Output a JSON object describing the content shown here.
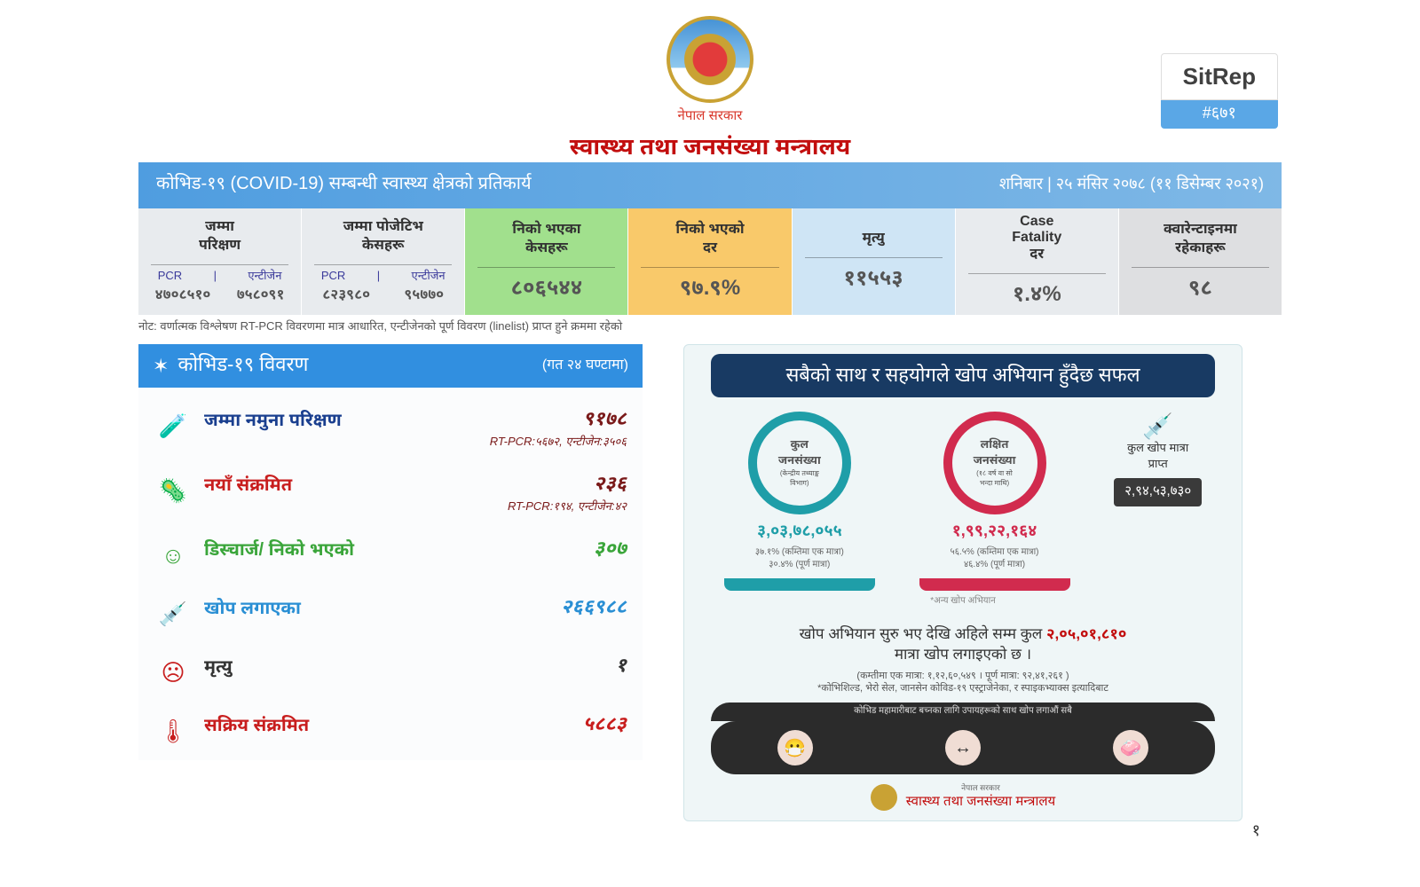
{
  "header": {
    "gov_label": "नेपाल सरकार",
    "ministry": "स्वास्थ्य तथा जनसंख्या मन्त्रालय",
    "sitrep_label": "SitRep",
    "sitrep_number": "#६७१"
  },
  "title_bar": {
    "title": "कोभिड-१९  (COVID-19)  सम्बन्धी स्वास्थ्य क्षेत्रको प्रतिकार्य",
    "date": "शनिबार  |  २५ मंसिर २०७८ (११ डिसेम्बर २०२१)"
  },
  "metrics": [
    {
      "label": "जम्मा\nपरिक्षण",
      "split": {
        "h": [
          "PCR",
          "एन्टीजेन"
        ],
        "v": [
          "४७०८५१०",
          "७५८०९१"
        ]
      },
      "bg": "#e8ebee"
    },
    {
      "label": "जम्मा पोजेटिभ\nकेसहरू",
      "split": {
        "h": [
          "PCR",
          "एन्टीजेन"
        ],
        "v": [
          "८२३९८०",
          "९५७७०"
        ]
      },
      "bg": "#e8ebee"
    },
    {
      "label": "निको भएका\nकेसहरू",
      "value": "८०६५४४",
      "bg": "#a1e08d"
    },
    {
      "label": "निको भएको\nदर",
      "value": "९७.९%",
      "bg": "#f9c96a"
    },
    {
      "label": "मृत्यु",
      "value": "११५५३",
      "bg": "#cfe5f5"
    },
    {
      "label": "Case\nFatality\nदर",
      "value": "१.४%",
      "bg": "#e8ebee"
    },
    {
      "label": "क्वारेन्टाइनमा\nरहेकाहरू",
      "value": "९८",
      "bg": "#dedfe1"
    }
  ],
  "note": "नोट:  वर्णात्मक विश्लेषण RT-PCR विवरणमा मात्र आधारित, एन्टीजेनको पूर्ण विवरण (linelist) प्राप्त हुने क्रममा रहेको",
  "left": {
    "header": "कोभिड-१९ विवरण",
    "header_sub": "(गत २४ घण्टामा)",
    "rows": [
      {
        "icon": "🧪",
        "icon_color": "#3b6fd1",
        "label": "जम्मा नमुना परिक्षण",
        "label_color": "#1a3f8f",
        "value": "९१७८",
        "sub": "RT-PCR:५६७२, एन्टीजेन:३५०६",
        "value_color": "#7a1a1a"
      },
      {
        "icon": "🦠",
        "icon_color": "#c81e1e",
        "label": "नयाँ संक्रमित",
        "label_color": "#c81e1e",
        "value": "२३६",
        "sub": "RT-PCR:१९४, एन्टीजेन:४२",
        "value_color": "#7a1a1a"
      },
      {
        "icon": "☺",
        "icon_color": "#3aa53a",
        "label": "डिस्चार्ज/ निको भएको",
        "label_color": "#3aa53a",
        "value": "३०७",
        "value_color": "#3aa53a"
      },
      {
        "icon": "💉",
        "icon_color": "#2a8fd4",
        "label": "खोप लगाएका",
        "label_color": "#2a8fd4",
        "value": "२६६९८८",
        "value_color": "#2a8fd4"
      },
      {
        "icon": "☹",
        "icon_color": "#c81e1e",
        "label": "मृत्यु",
        "label_color": "#333",
        "value": "१",
        "value_color": "#333"
      },
      {
        "icon": "🌡",
        "icon_color": "#c81e1e",
        "label": "सक्रिय संक्रमित",
        "label_color": "#c81e1e",
        "value": "५८८३",
        "value_color": "#c81e1e"
      }
    ]
  },
  "right": {
    "title": "सबैको साथ र सहयोगले खोप अभियान हुँदैछ सफल",
    "rings": [
      {
        "color": "#1f9ea8",
        "title": "कुल\nजनसंख्या",
        "sub": "(केन्द्रीय तथ्याङ्क\nविभाग)",
        "value": "३,०३,७८,०५५",
        "pct1": "३७.१%  (कम्तिमा एक मात्रा)",
        "pct2": "३०.४%  (पूर्ण मात्रा)"
      },
      {
        "color": "#d12b4e",
        "title": "लक्षित\nजनसंख्या",
        "sub": "(१८ वर्ष वा सो\nभन्दा माथि)",
        "value": "१,९९,२२,१६४",
        "pct1": "५६.५%  (कम्तिमा एक मात्रा)",
        "pct2": "४६.४%  (पूर्ण मात्रा)"
      }
    ],
    "dose": {
      "icon_label": "कुल खोप मात्रा\nप्राप्त",
      "value": "२,९४,५३,७३०"
    },
    "ring_note": "*अन्य खोप अभियान",
    "msg_pre": "खोप अभियान सुरु भए देखि अहिले सम्म कुल ",
    "msg_hl": "२,०५,०१,८१०",
    "msg_post": " मात्रा खोप लगाइएको छ ।",
    "small1": "(कम्तीमा एक मात्रा: १,१२,६०,५४९ । पूर्ण मात्रा: ९२,४१,२६१ )",
    "small2": "*कोभिशिल्ड, भेरो सेल, जानसेन कोविड-१९ एस्ट्राजेनेका, र स्पाइकभ्याक्स इत्यादिबाट",
    "strip_caption": "कोभिड महामारीबाट बच्नका लागि उपायहरूको साथ खोप लगाऔं सबै",
    "footer_sub": "नेपाल सरकार",
    "footer": "स्वास्थ्य तथा जनसंख्या मन्त्रालय"
  },
  "page_number": "१"
}
